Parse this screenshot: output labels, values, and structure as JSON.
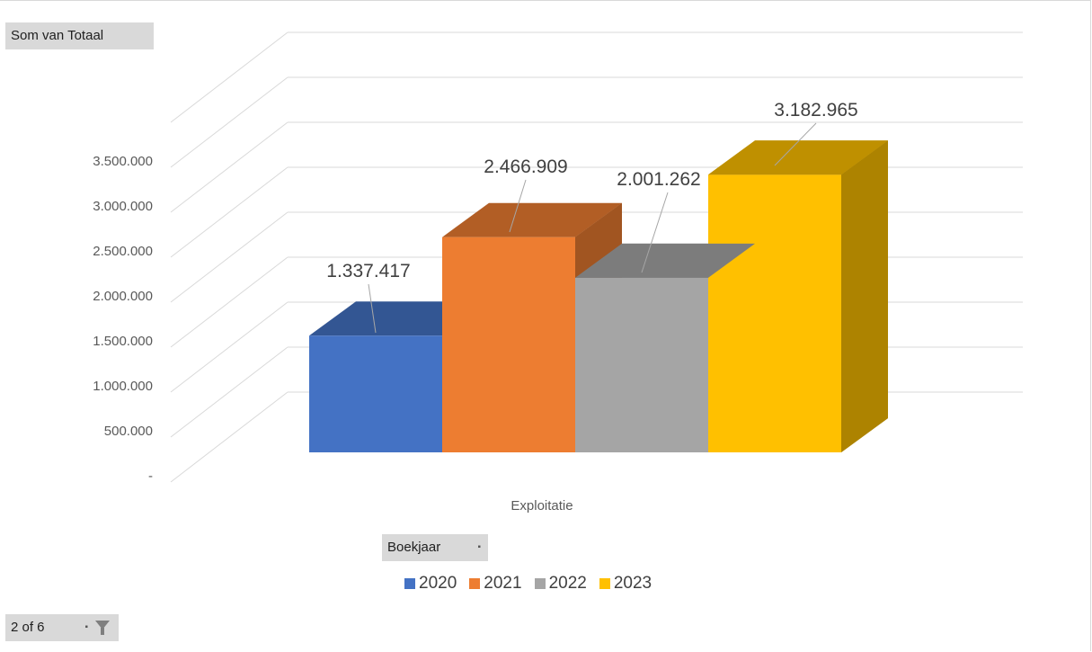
{
  "chart_data": {
    "type": "bar",
    "style": "3d-clustered-column",
    "value_field_label": "Som van Totaal",
    "legend_field_label": "Boekjaar",
    "categories": [
      "Exploitatie"
    ],
    "series": [
      {
        "name": "2020",
        "values": [
          1337417
        ],
        "color": "#4472C4",
        "label": "1.337.417"
      },
      {
        "name": "2021",
        "values": [
          2466909
        ],
        "color": "#ED7D31",
        "label": "2.466.909"
      },
      {
        "name": "2022",
        "values": [
          2001262
        ],
        "color": "#A5A5A5",
        "label": "2.001.262"
      },
      {
        "name": "2023",
        "values": [
          3182965
        ],
        "color": "#FFC000",
        "label": "3.182.965"
      }
    ],
    "y_ticks": [
      "-",
      "500.000",
      "1.000.000",
      "1.500.000",
      "2.000.000",
      "2.500.000",
      "3.000.000",
      "3.500.000"
    ],
    "ylim": [
      0,
      3500000
    ],
    "grid": true,
    "legend_position": "bottom"
  },
  "page_indicator": {
    "text": "2 of 6"
  },
  "icons": {
    "filter": "filter-icon"
  }
}
